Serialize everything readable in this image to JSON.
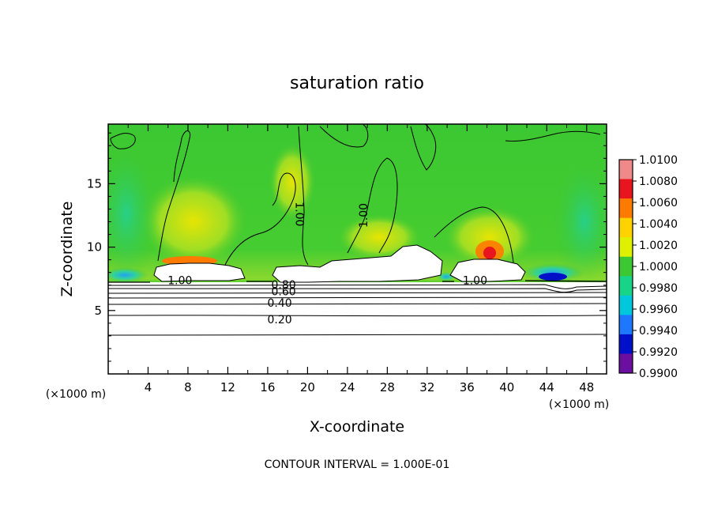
{
  "chart_data": {
    "type": "heatmap",
    "title": "saturation ratio",
    "xlabel": "X-coordinate",
    "ylabel": "Z-coordinate",
    "x_unit_left": "(×1000 m)",
    "x_unit_right": "(×1000 m)",
    "xlim": [
      0,
      50
    ],
    "ylim": [
      0,
      19.7
    ],
    "x_ticks": [
      4,
      8,
      12,
      16,
      20,
      24,
      28,
      32,
      36,
      40,
      44,
      48
    ],
    "y_ticks": [
      5,
      10,
      15
    ],
    "footer": "CONTOUR INTERVAL = 1.000E-01",
    "colorbar": {
      "levels": [
        "1.0100",
        "1.0080",
        "1.0060",
        "1.0040",
        "1.0020",
        "1.0000",
        "0.9980",
        "0.9960",
        "0.9940",
        "0.9920",
        "0.9900"
      ],
      "colors": [
        "#f08a8a",
        "#e8141e",
        "#ff7a00",
        "#ffd200",
        "#dff000",
        "#3cc832",
        "#18d488",
        "#00c8dc",
        "#1e78ff",
        "#0010c8",
        "#6a0fa0"
      ]
    },
    "contour_labels": [
      {
        "text": "1.00",
        "x": 7.2,
        "y": 7.4
      },
      {
        "text": "1.00",
        "x": 19.2,
        "y": 12.6,
        "rotate": 90
      },
      {
        "text": "1.00",
        "x": 25.6,
        "y": 12.5,
        "rotate": -90
      },
      {
        "text": "1.00",
        "x": 36.8,
        "y": 7.4
      },
      {
        "text": "0.80",
        "x": 17.6,
        "y": 7.05
      },
      {
        "text": "0.60",
        "x": 17.6,
        "y": 6.5
      },
      {
        "text": "0.40",
        "x": 17.2,
        "y": 5.6
      },
      {
        "text": "0.20",
        "x": 17.2,
        "y": 4.3
      }
    ]
  }
}
